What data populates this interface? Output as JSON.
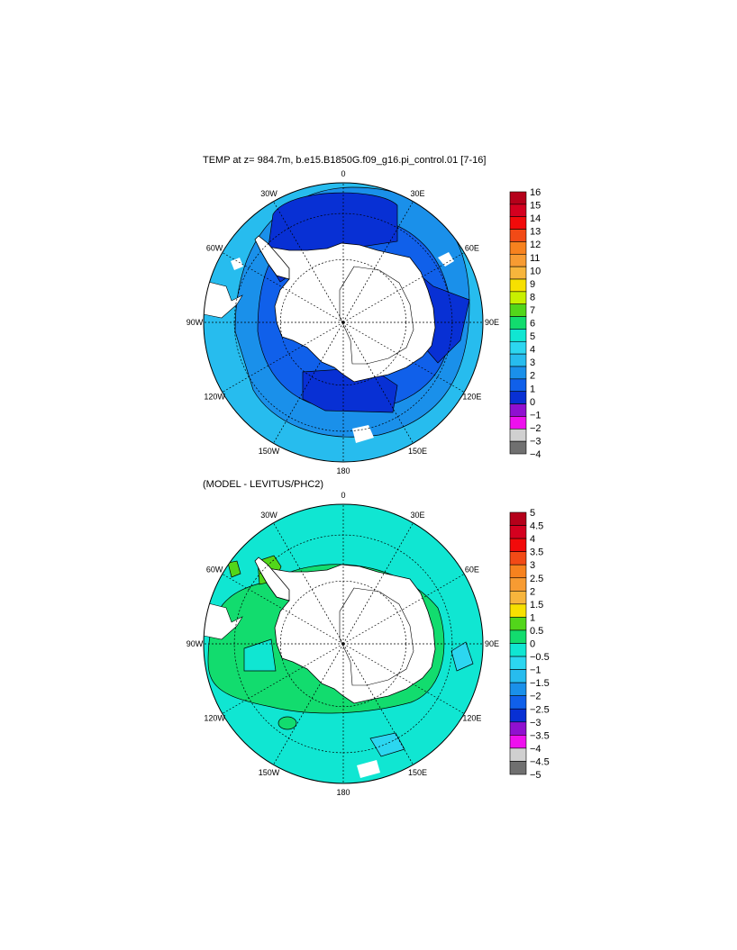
{
  "panels": {
    "top": {
      "title": "TEMP at z= 984.7m, b.e15.B1850G.f09_g16.pi_control.01 [7-16]",
      "lon_labels": [
        "0",
        "30E",
        "60E",
        "90E",
        "120E",
        "150E",
        "180",
        "150W",
        "120W",
        "90W",
        "60W",
        "30W"
      ],
      "colorbar": {
        "labels": [
          "16",
          "15",
          "14",
          "13",
          "12",
          "11",
          "10",
          "9",
          "8",
          "7",
          "6",
          "5",
          "4",
          "3",
          "2",
          "1",
          "0",
          "−1",
          "−2",
          "−3",
          "−4"
        ],
        "colors": [
          "#b5001a",
          "#d4001f",
          "#f20a0a",
          "#f24a16",
          "#f7821e",
          "#f79b32",
          "#f7b53c",
          "#f7e000",
          "#c8f000",
          "#52d61a",
          "#12dc6e",
          "#10e6d2",
          "#2cd6f0",
          "#27bcee",
          "#1a90ea",
          "#1060ea",
          "#0830d4",
          "#9010d0",
          "#ee10ee",
          "#d0d0d0",
          "#707070"
        ]
      }
    },
    "bottom": {
      "title": "(MODEL - LEVITUS/PHC2)",
      "lon_labels": [
        "0",
        "30E",
        "60E",
        "90E",
        "120E",
        "150E",
        "180",
        "150W",
        "120W",
        "90W",
        "60W",
        "30W"
      ],
      "colorbar": {
        "labels": [
          "5",
          "4.5",
          "4",
          "3.5",
          "3",
          "2.5",
          "2",
          "1.5",
          "1",
          "0.5",
          "0",
          "−0.5",
          "−1",
          "−1.5",
          "−2",
          "−2.5",
          "−3",
          "−3.5",
          "−4",
          "−4.5",
          "−5"
        ],
        "colors": [
          "#b5001a",
          "#d4001f",
          "#f20a0a",
          "#f24a16",
          "#f7821e",
          "#f79b32",
          "#f7b53c",
          "#f7e000",
          "#52d61a",
          "#12dc6e",
          "#10e6d2",
          "#2cd6f0",
          "#27bcee",
          "#1a90ea",
          "#1060ea",
          "#0830d4",
          "#9010d0",
          "#ee10ee",
          "#d0d0d0",
          "#707070"
        ]
      }
    }
  },
  "colors": {
    "land": "#ffffff",
    "top_fill": [
      "#27bcee",
      "#1a90ea",
      "#1060ea",
      "#0830d4"
    ],
    "bottom_fill": [
      "#10e6d2",
      "#12dc6e",
      "#52d61a",
      "#2cd6f0"
    ]
  }
}
